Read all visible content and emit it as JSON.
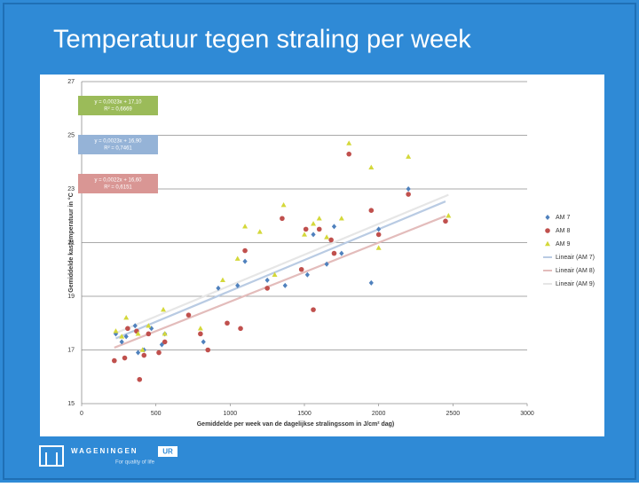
{
  "slide": {
    "title": "Temperatuur tegen straling per week"
  },
  "chart_data": {
    "type": "scatter",
    "xlabel": "Gemiddelde per week van de dagelijkse stralingssom in J/cm² dag)",
    "ylabel": "Gemiddelde kastemperatuur in °C",
    "xlim": [
      0,
      3000
    ],
    "xticks": [
      0,
      500,
      1000,
      1500,
      2000,
      2500,
      3000
    ],
    "ylim": [
      15,
      27
    ],
    "yticks": [
      15,
      17,
      19,
      21,
      23,
      25,
      27
    ],
    "grid": true,
    "legend": "right",
    "series": [
      {
        "name": "AM 7",
        "color": "#4f81bd",
        "marker": "diamond",
        "x": [
          230,
          270,
          300,
          360,
          380,
          420,
          470,
          540,
          560,
          820,
          920,
          1050,
          1100,
          1250,
          1370,
          1520,
          1560,
          1650,
          1700,
          1750,
          1950,
          2000,
          2200,
          2450
        ],
        "values": [
          17.6,
          17.3,
          17.5,
          17.9,
          16.9,
          17.0,
          17.8,
          17.2,
          17.6,
          17.3,
          19.3,
          19.4,
          20.3,
          19.6,
          19.4,
          19.8,
          21.3,
          20.2,
          21.6,
          20.6,
          19.5,
          21.5,
          23.0,
          21.8
        ],
        "trendline": {
          "name": "Lineair (AM 7)",
          "color": "#b9cbe3",
          "box_color": "#95b3d7",
          "slope": 0.0023,
          "intercept": 16.9,
          "equation": "y = 0,0023x + 16,90",
          "r2": "R² = 0,7461"
        }
      },
      {
        "name": "AM 8",
        "color": "#c0504d",
        "marker": "circle",
        "x": [
          220,
          290,
          310,
          370,
          390,
          420,
          450,
          520,
          560,
          720,
          800,
          850,
          980,
          1070,
          1100,
          1250,
          1350,
          1480,
          1510,
          1560,
          1600,
          1680,
          1700,
          1800,
          1950,
          2000,
          2200,
          2450
        ],
        "values": [
          16.6,
          16.7,
          17.8,
          17.7,
          15.9,
          16.8,
          17.6,
          16.9,
          17.3,
          18.3,
          17.6,
          17.0,
          18.0,
          17.8,
          20.7,
          19.3,
          21.9,
          20.0,
          21.5,
          18.5,
          21.5,
          21.1,
          20.6,
          24.3,
          22.2,
          21.3,
          22.8,
          21.8
        ],
        "trendline": {
          "name": "Lineair (AM 8)",
          "color": "#e3bcbb",
          "box_color": "#d99694",
          "slope": 0.0022,
          "intercept": 16.6,
          "equation": "y = 0,0022x + 16,60",
          "r2": "R² = 0,6151"
        }
      },
      {
        "name": "AM 9",
        "color": "#d4d83a",
        "marker": "triangle",
        "x": [
          230,
          270,
          300,
          380,
          410,
          450,
          550,
          560,
          800,
          950,
          1050,
          1100,
          1200,
          1300,
          1360,
          1500,
          1560,
          1600,
          1650,
          1750,
          1800,
          1950,
          2000,
          2200,
          2470
        ],
        "values": [
          17.7,
          17.5,
          18.2,
          17.6,
          17.0,
          17.9,
          18.5,
          17.6,
          17.8,
          19.6,
          20.4,
          21.6,
          21.4,
          19.8,
          22.4,
          21.3,
          21.7,
          21.9,
          21.2,
          21.9,
          24.7,
          23.8,
          20.8,
          24.2,
          22.0
        ],
        "trendline": {
          "name": "Lineair (AM 9)",
          "color": "#e6e6e6",
          "box_color": "#9bbb59",
          "slope": 0.0023,
          "intercept": 17.1,
          "equation": "y = 0,0023x + 17,10",
          "r2": "R² = 0,6669"
        }
      }
    ]
  },
  "footer": {
    "brand": "WAGENINGEN",
    "brand_suffix": "UR",
    "tagline": "For quality of life"
  }
}
